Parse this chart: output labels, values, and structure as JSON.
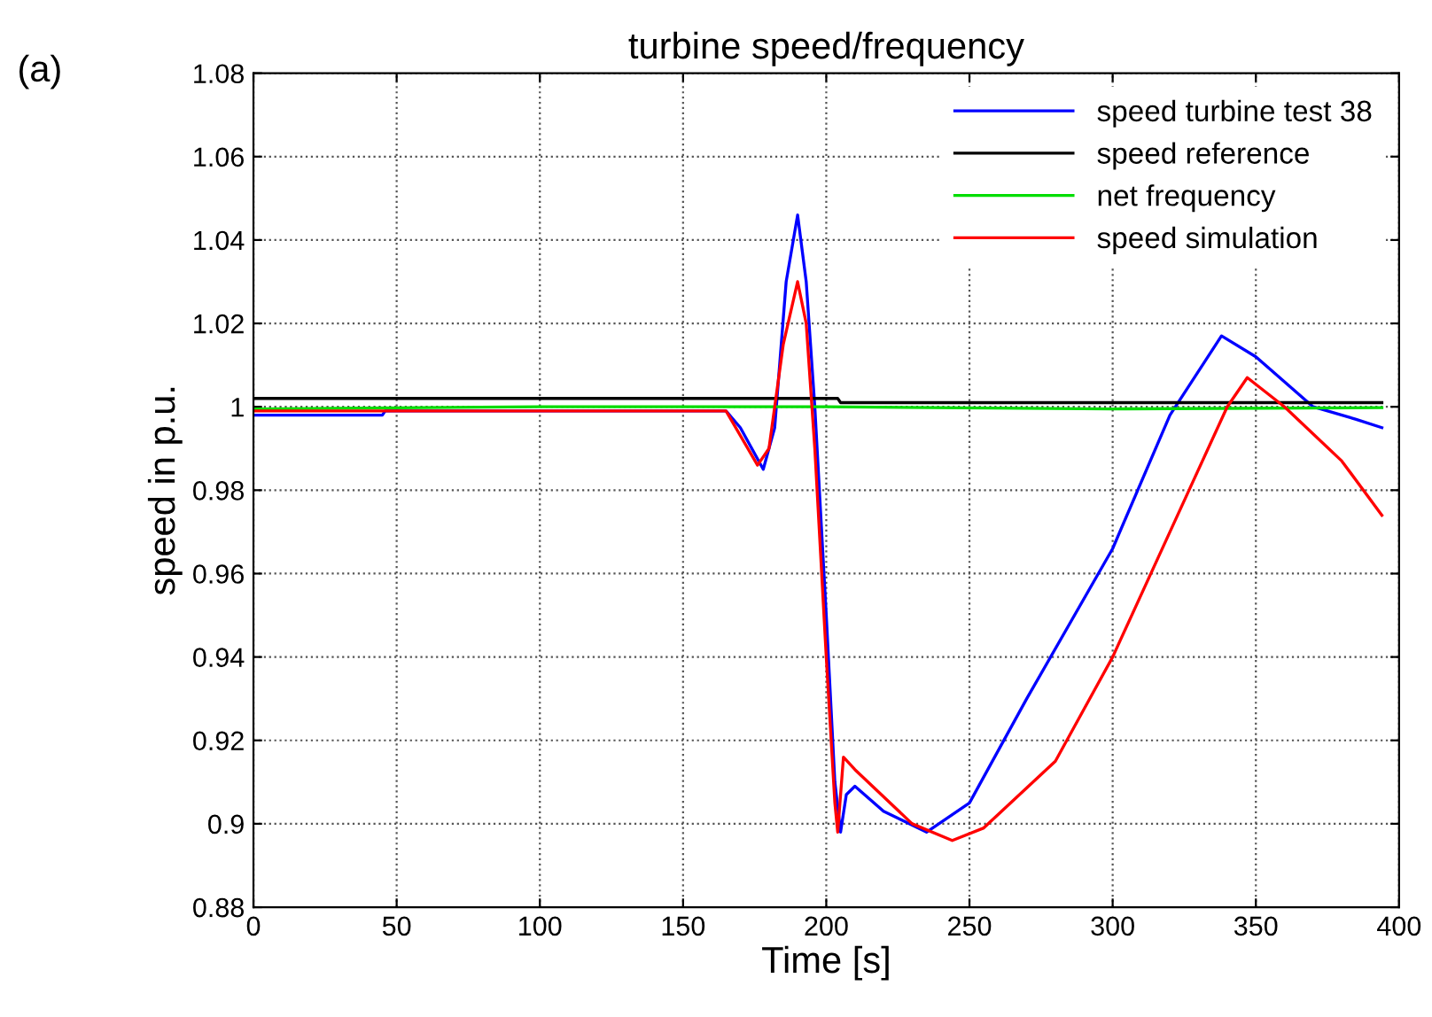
{
  "chart_data": {
    "type": "line",
    "title": "turbine speed/frequency",
    "xlabel": "Time [s]",
    "ylabel": "speed in p.u.",
    "annotations": [
      "(a)"
    ],
    "xlim": [
      0,
      400
    ],
    "xticks": [
      0,
      50,
      100,
      150,
      200,
      250,
      300,
      350,
      400
    ],
    "ylim": [
      0.88,
      1.08
    ],
    "yticks": [
      0.88,
      0.9,
      0.92,
      0.94,
      0.96,
      0.98,
      1,
      1.02,
      1.04,
      1.06,
      1.08
    ],
    "grid": true,
    "legend": "top right",
    "marker": "none",
    "line_style": "solid",
    "series": [
      {
        "name": "speed turbine test 38",
        "color": "#0000ff",
        "x": [
          0,
          45,
          46,
          165,
          170,
          178,
          182,
          186,
          190,
          193,
          196,
          200,
          203,
          205,
          207,
          210,
          220,
          235,
          250,
          270,
          300,
          320,
          338,
          350,
          370,
          385,
          394
        ],
        "values": [
          0.998,
          0.998,
          0.999,
          0.999,
          0.995,
          0.985,
          0.995,
          1.03,
          1.046,
          1.03,
          1.0,
          0.95,
          0.91,
          0.898,
          0.907,
          0.909,
          0.903,
          0.898,
          0.905,
          0.93,
          0.966,
          0.998,
          1.017,
          1.012,
          1.0,
          0.997,
          0.995
        ]
      },
      {
        "name": "speed reference",
        "color": "#000000",
        "x": [
          0,
          204,
          205,
          394
        ],
        "values": [
          1.002,
          1.002,
          1.001,
          1.001
        ]
      },
      {
        "name": "net frequency",
        "color": "#00dd00",
        "x": [
          0,
          100,
          200,
          300,
          394
        ],
        "values": [
          0.9995,
          1.0,
          1.0,
          0.9995,
          0.9998
        ]
      },
      {
        "name": "speed simulation",
        "color": "#ff0000",
        "x": [
          0,
          165,
          176,
          180,
          185,
          190,
          193,
          196,
          200,
          203,
          204,
          206,
          210,
          230,
          244,
          255,
          280,
          300,
          320,
          340,
          347,
          360,
          380,
          394
        ],
        "values": [
          0.999,
          0.999,
          0.986,
          0.99,
          1.015,
          1.03,
          1.02,
          0.99,
          0.94,
          0.905,
          0.898,
          0.916,
          0.913,
          0.9,
          0.896,
          0.899,
          0.915,
          0.94,
          0.97,
          1.0,
          1.007,
          1.0,
          0.987,
          0.974
        ]
      }
    ]
  }
}
